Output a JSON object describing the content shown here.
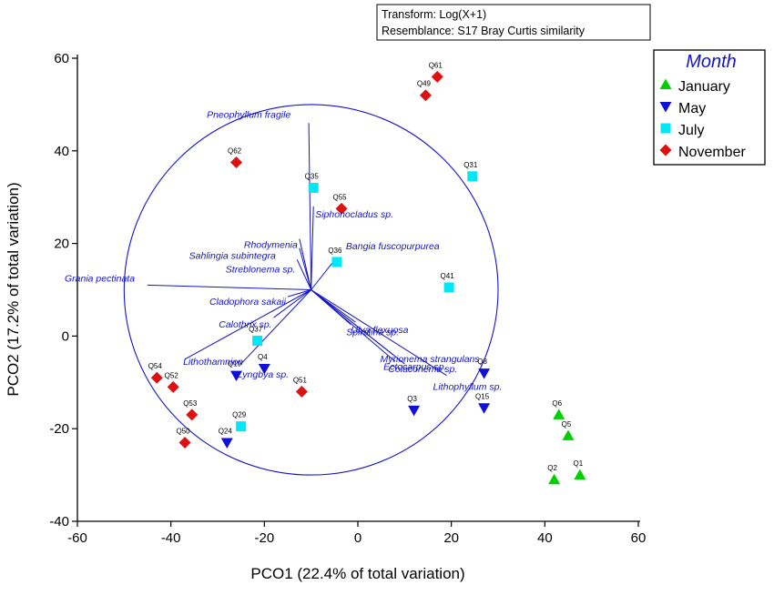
{
  "chart_data": {
    "type": "scatter",
    "xlabel": "PCO1 (22.4% of total variation)",
    "ylabel": "PCO2 (17.2% of total variation)",
    "xlim": [
      -60,
      60
    ],
    "ylim": [
      -40,
      60
    ],
    "xticks": [
      -60,
      -40,
      -20,
      0,
      20,
      40,
      60
    ],
    "yticks": [
      -40,
      -20,
      0,
      20,
      40,
      60
    ],
    "info_lines": [
      "Transform: Log(X+1)",
      "Resemblance: S17 Bray Curtis similarity"
    ],
    "legend": {
      "title": "Month",
      "position": "top-right",
      "entries": [
        "January",
        "May",
        "July",
        "November"
      ]
    },
    "series": [
      {
        "name": "January",
        "marker": "triangle-up",
        "color": "#00d000",
        "points": [
          {
            "label": "Q6",
            "x": 43,
            "y": -17
          },
          {
            "label": "Q5",
            "x": 45,
            "y": -21.5
          },
          {
            "label": "Q1",
            "x": 47.5,
            "y": -30
          },
          {
            "label": "Q2",
            "x": 42,
            "y": -31
          }
        ]
      },
      {
        "name": "May",
        "marker": "triangle-down",
        "color": "#1010d8",
        "points": [
          {
            "label": "Q3",
            "x": 12,
            "y": -16
          },
          {
            "label": "Q15",
            "x": 27,
            "y": -15.5
          },
          {
            "label": "Q4",
            "x": -20,
            "y": -7
          },
          {
            "label": "Q19",
            "x": -26,
            "y": -8.5
          },
          {
            "label": "Q24",
            "x": -28,
            "y": -23
          },
          {
            "label": "Q8",
            "x": 27,
            "y": -8
          }
        ]
      },
      {
        "name": "July",
        "marker": "square",
        "color": "#00e8f8",
        "points": [
          {
            "label": "Q35",
            "x": -9.5,
            "y": 32
          },
          {
            "label": "Q31",
            "x": 24.5,
            "y": 34.5
          },
          {
            "label": "Q36",
            "x": -4.5,
            "y": 16
          },
          {
            "label": "Q41",
            "x": 19.5,
            "y": 10.5
          },
          {
            "label": "Q37",
            "x": -21.5,
            "y": -1
          },
          {
            "label": "Q29",
            "x": -25,
            "y": -19.5
          }
        ]
      },
      {
        "name": "November",
        "marker": "diamond",
        "color": "#e01010",
        "points": [
          {
            "label": "Q61",
            "x": 17,
            "y": 56
          },
          {
            "label": "Q49",
            "x": 14.5,
            "y": 52
          },
          {
            "label": "Q62",
            "x": -26,
            "y": 37.5
          },
          {
            "label": "Q55",
            "x": -3.5,
            "y": 27.5
          },
          {
            "label": "Q54",
            "x": -43,
            "y": -9
          },
          {
            "label": "Q52",
            "x": -39.5,
            "y": -11
          },
          {
            "label": "Q53",
            "x": -35.5,
            "y": -17
          },
          {
            "label": "Q50",
            "x": -37,
            "y": -23
          },
          {
            "label": "Q51",
            "x": -12,
            "y": -12
          }
        ]
      }
    ],
    "vectors": {
      "origin": [
        -10,
        10
      ],
      "circle_radius": 40,
      "items": [
        {
          "label": "Pneophyllum fragile",
          "x": -10.5,
          "y": 46
        },
        {
          "label": "Siphonocladus sp.",
          "x": -9.5,
          "y": 28
        },
        {
          "label": "Rhodymenia",
          "x": -12.5,
          "y": 21
        },
        {
          "label": "Sahlingia subintegra",
          "x": -12.5,
          "y": 19
        },
        {
          "label": "Streblonema sp.",
          "x": -13,
          "y": 16.5
        },
        {
          "label": "Bangia fuscopurpurea",
          "x": -4.5,
          "y": 17
        },
        {
          "label": "Grania pectinata",
          "x": -45,
          "y": 11
        },
        {
          "label": "Cladophora sakaii",
          "x": -15,
          "y": 8.5
        },
        {
          "label": "Calothrix sp.",
          "x": -18,
          "y": 4
        },
        {
          "label": "Ulva flexuosa",
          "x": -0.5,
          "y": 3
        },
        {
          "label": "Spirulina sp.",
          "x": -1.5,
          "y": 2.5
        },
        {
          "label": "Lithothamnion",
          "x": -37,
          "y": -5
        },
        {
          "label": "Lyngbya sp.",
          "x": -25,
          "y": -6
        },
        {
          "label": "Myrionema strangulans",
          "x": 7.5,
          "y": -4
        },
        {
          "label": "Ectocarpus sp.",
          "x": 8,
          "y": -5.5
        },
        {
          "label": "Colaconema sp.",
          "x": 10,
          "y": -6
        },
        {
          "label": "Lithophyllum sp.",
          "x": 19,
          "y": -8.5
        }
      ]
    }
  },
  "vector_label_text": [
    "Pneophyllum fragile",
    "Siphonocladus sp.",
    "Rhodymenia",
    "Sahlingia subintegra",
    "Streblonema sp.",
    "Bangia fuscopurpurea",
    "Grania pectinata",
    "Cladophora sakaii",
    "Calothrix sp.",
    "Ulva flexuosa",
    "Spirulina sp.",
    "Lithothamnion",
    "Lyngbya sp.",
    "Myrionema strangulans",
    "Ectocarpus sp.",
    "Colaconema sp.",
    "Lithophyllum sp."
  ],
  "colors": {
    "axis": "#000000",
    "vector": "#1414c8",
    "legend_title": "#1414c8"
  }
}
